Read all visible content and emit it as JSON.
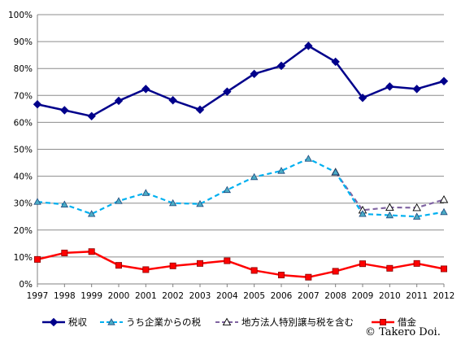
{
  "chart_data": {
    "type": "line",
    "x": [
      "1997",
      "1998",
      "1999",
      "2000",
      "2001",
      "2002",
      "2003",
      "2004",
      "2005",
      "2006",
      "2007",
      "2008",
      "2009",
      "2010",
      "2011",
      "2012"
    ],
    "ylim": [
      0,
      100
    ],
    "yticks": [
      "0%",
      "10%",
      "20%",
      "30%",
      "40%",
      "50%",
      "60%",
      "70%",
      "80%",
      "90%",
      "100%"
    ],
    "grid": true,
    "legend_position": "bottom",
    "series": [
      {
        "name": "税収",
        "color": "#00008B",
        "marker": "diamond",
        "dash": "solid",
        "values": [
          66.7,
          64.5,
          62.3,
          68.0,
          72.4,
          68.2,
          64.7,
          71.4,
          78.0,
          81.0,
          88.4,
          82.5,
          69.1,
          73.3,
          72.4,
          75.3
        ]
      },
      {
        "name": "うち企業からの税",
        "color": "#00B0F0",
        "marker": "triangle-filled",
        "dash": "dashed",
        "values": [
          30.5,
          29.5,
          26.0,
          30.8,
          33.8,
          30.0,
          29.7,
          34.9,
          39.7,
          42.0,
          46.5,
          41.5,
          26.0,
          25.5,
          25.0,
          26.7
        ]
      },
      {
        "name": "地方法人特別譲与税を含む",
        "color": "#8064A2",
        "marker": "triangle-open",
        "dash": "dashed",
        "values": [
          null,
          null,
          null,
          null,
          null,
          null,
          null,
          null,
          null,
          null,
          null,
          41.5,
          27.4,
          28.4,
          28.3,
          31.3
        ]
      },
      {
        "name": "借金",
        "color": "#FF0000",
        "marker": "square",
        "dash": "solid",
        "values": [
          9.1,
          11.5,
          12.0,
          6.9,
          5.3,
          6.7,
          7.6,
          8.6,
          5.0,
          3.3,
          2.5,
          4.7,
          7.5,
          5.8,
          7.6,
          5.6
        ]
      }
    ]
  },
  "credit": "© Takero Doi."
}
